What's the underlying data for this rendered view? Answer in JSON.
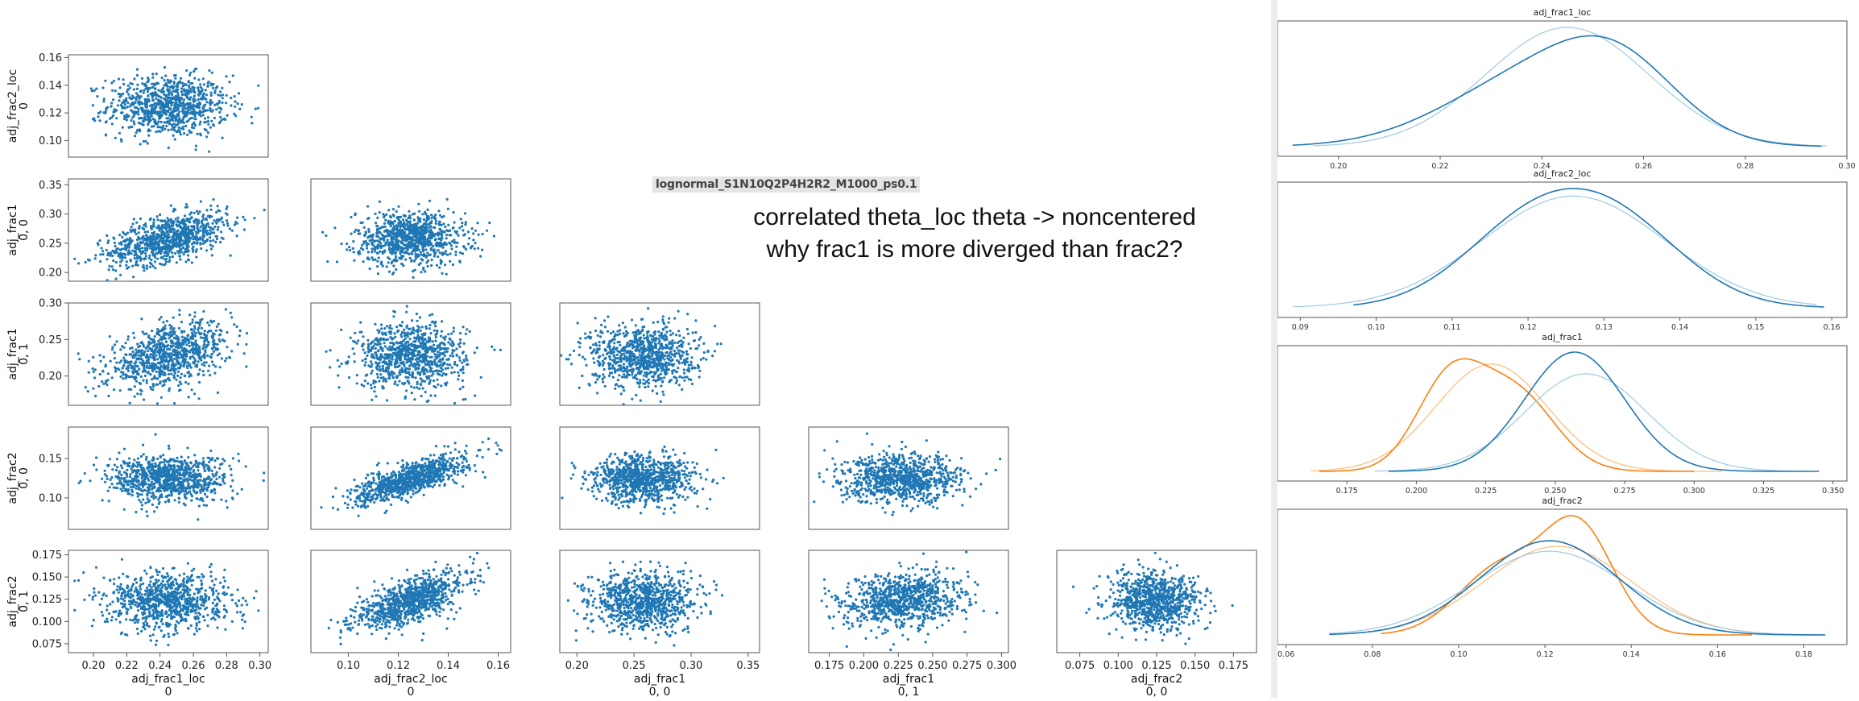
{
  "annotation": {
    "file_tag": "lognormal_S1N10Q2P4H2R2_M1000_ps0.1",
    "note_line1": "correlated theta_loc theta -> noncentered",
    "note_line2": "why frac1 is more diverged than frac2?"
  },
  "colors": {
    "scatter": "#1f77b4",
    "chain_blue": "#1f77b4",
    "chain_orange": "#ff7f0e",
    "chain_blue_light": "#9ecae1",
    "chain_orange_light": "#ffbb78"
  },
  "chart_data": [
    {
      "type": "scatter",
      "title": "",
      "rows": [
        {
          "label": "adj_frac2_loc",
          "sublabel": "0",
          "range": [
            0.088,
            0.162
          ],
          "ticks": [
            0.1,
            0.12,
            0.14,
            0.16
          ],
          "tick_labels": [
            "0.10",
            "0.12",
            "0.14",
            "0.16"
          ]
        },
        {
          "label": "adj_frac1",
          "sublabel": "0, 0",
          "range": [
            0.185,
            0.36
          ],
          "ticks": [
            0.2,
            0.25,
            0.3,
            0.35
          ],
          "tick_labels": [
            "0.20",
            "0.25",
            "0.30",
            "0.35"
          ]
        },
        {
          "label": "adj_frac1",
          "sublabel": "0, 1",
          "range": [
            0.16,
            0.3
          ],
          "ticks": [
            0.2,
            0.25,
            0.3
          ],
          "tick_labels": [
            "0.20",
            "0.25",
            "0.30"
          ]
        },
        {
          "label": "adj_frac2",
          "sublabel": "0, 0",
          "range": [
            0.06,
            0.19
          ],
          "ticks": [
            0.1,
            0.15
          ],
          "tick_labels": [
            "0.10",
            "0.15"
          ]
        },
        {
          "label": "adj_frac2",
          "sublabel": "0, 1",
          "range": [
            0.065,
            0.18
          ],
          "ticks": [
            0.075,
            0.1,
            0.125,
            0.15,
            0.175
          ],
          "tick_labels": [
            "0.075",
            "0.100",
            "0.125",
            "0.150",
            "0.175"
          ]
        }
      ],
      "cols": [
        {
          "label": "adj_frac1_loc",
          "sublabel": "0",
          "range": [
            0.185,
            0.305
          ],
          "ticks": [
            0.2,
            0.22,
            0.24,
            0.26,
            0.28,
            0.3
          ],
          "tick_labels": [
            "0.20",
            "0.22",
            "0.24",
            "0.26",
            "0.28",
            "0.30"
          ]
        },
        {
          "label": "adj_frac2_loc",
          "sublabel": "0",
          "range": [
            0.085,
            0.165
          ],
          "ticks": [
            0.1,
            0.12,
            0.14,
            0.16
          ],
          "tick_labels": [
            "0.10",
            "0.12",
            "0.14",
            "0.16"
          ]
        },
        {
          "label": "adj_frac1",
          "sublabel": "0, 0",
          "range": [
            0.185,
            0.36
          ],
          "ticks": [
            0.2,
            0.25,
            0.3,
            0.35
          ],
          "tick_labels": [
            "0.20",
            "0.25",
            "0.30",
            "0.35"
          ]
        },
        {
          "label": "adj_frac1",
          "sublabel": "0, 1",
          "range": [
            0.16,
            0.305
          ],
          "ticks": [
            0.175,
            0.2,
            0.225,
            0.25,
            0.275,
            0.3
          ],
          "tick_labels": [
            "0.175",
            "0.200",
            "0.225",
            "0.250",
            "0.275",
            "0.300"
          ]
        },
        {
          "label": "adj_frac2",
          "sublabel": "0, 0",
          "range": [
            0.06,
            0.19
          ],
          "ticks": [
            0.075,
            0.1,
            0.125,
            0.15,
            0.175
          ],
          "tick_labels": [
            "0.075",
            "0.100",
            "0.125",
            "0.150",
            "0.175"
          ]
        }
      ],
      "variable_stats": [
        {
          "mean": 0.245,
          "sd": 0.018
        },
        {
          "mean": 0.125,
          "sd": 0.011
        },
        {
          "mean": 0.258,
          "sd": 0.023
        },
        {
          "mean": 0.228,
          "sd": 0.022
        },
        {
          "mean": 0.124,
          "sd": 0.015
        },
        {
          "mean": 0.123,
          "sd": 0.016
        }
      ],
      "correlations": {
        "0-2": 0.55,
        "0-3": 0.45,
        "1-4": 0.75,
        "1-5": 0.65,
        "3-5": 0.2
      },
      "points_per_panel": 900
    },
    {
      "type": "line",
      "title": "adj_frac1_loc",
      "xlim": [
        0.188,
        0.3
      ],
      "ticks": [
        0.2,
        0.22,
        0.24,
        0.26,
        0.28,
        0.3
      ],
      "tick_labels": [
        "0.20",
        "0.22",
        "0.24",
        "0.26",
        "0.28",
        "0.30"
      ],
      "series": [
        {
          "color": "blue_light",
          "components": [
            [
              0.245,
              0.016,
              1.0
            ]
          ],
          "x_range": [
            0.195,
            0.296
          ]
        },
        {
          "color": "blue",
          "components": [
            [
              0.238,
              0.017,
              0.6
            ],
            [
              0.255,
              0.012,
              0.4
            ]
          ],
          "x_range": [
            0.191,
            0.295
          ]
        }
      ]
    },
    {
      "type": "line",
      "title": "adj_frac2_loc",
      "xlim": [
        0.087,
        0.162
      ],
      "ticks": [
        0.09,
        0.1,
        0.11,
        0.12,
        0.13,
        0.14,
        0.15,
        0.16
      ],
      "tick_labels": [
        "0.09",
        "0.10",
        "0.11",
        "0.12",
        "0.13",
        "0.14",
        "0.15",
        "0.16"
      ],
      "series": [
        {
          "color": "blue_light",
          "components": [
            [
              0.126,
              0.012,
              1.0
            ]
          ],
          "x_range": [
            0.089,
            0.158
          ]
        },
        {
          "color": "blue",
          "components": [
            [
              0.12,
              0.009,
              0.5
            ],
            [
              0.132,
              0.009,
              0.5
            ]
          ],
          "x_range": [
            0.097,
            0.159
          ]
        }
      ]
    },
    {
      "type": "line",
      "title": "adj_frac1",
      "xlim": [
        0.15,
        0.355
      ],
      "ticks": [
        0.175,
        0.2,
        0.225,
        0.25,
        0.275,
        0.3,
        0.325,
        0.35
      ],
      "tick_labels": [
        "0.175",
        "0.200",
        "0.225",
        "0.250",
        "0.275",
        "0.300",
        "0.325",
        "0.350"
      ],
      "series": [
        {
          "color": "orange_light",
          "components": [
            [
              0.227,
              0.02,
              1.0
            ]
          ],
          "x_range": [
            0.162,
            0.31
          ]
        },
        {
          "color": "orange",
          "components": [
            [
              0.212,
              0.012,
              0.5
            ],
            [
              0.236,
              0.014,
              0.5
            ]
          ],
          "x_range": [
            0.165,
            0.3
          ]
        },
        {
          "color": "blue_light",
          "components": [
            [
              0.261,
              0.022,
              1.0
            ]
          ],
          "x_range": [
            0.185,
            0.34
          ]
        },
        {
          "color": "blue",
          "components": [
            [
              0.257,
              0.018,
              1.0
            ]
          ],
          "x_range": [
            0.19,
            0.345
          ]
        }
      ]
    },
    {
      "type": "line",
      "title": "adj_frac2",
      "xlim": [
        0.058,
        0.19
      ],
      "ticks": [
        0.06,
        0.08,
        0.1,
        0.12,
        0.14,
        0.16,
        0.18
      ],
      "tick_labels": [
        "0.06",
        "0.08",
        "0.10",
        "0.12",
        "0.14",
        "0.16",
        "0.18"
      ],
      "series": [
        {
          "color": "orange_light",
          "components": [
            [
              0.123,
              0.017,
              1.0
            ]
          ],
          "x_range": [
            0.075,
            0.172
          ]
        },
        {
          "color": "orange",
          "components": [
            [
              0.11,
              0.01,
              0.45
            ],
            [
              0.128,
              0.008,
              0.55
            ]
          ],
          "x_range": [
            0.082,
            0.168
          ]
        },
        {
          "color": "blue_light",
          "components": [
            [
              0.121,
              0.018,
              1.0
            ]
          ],
          "x_range": [
            0.07,
            0.185
          ]
        },
        {
          "color": "blue",
          "components": [
            [
              0.121,
              0.016,
              1.0
            ]
          ],
          "x_range": [
            0.07,
            0.185
          ]
        }
      ]
    }
  ]
}
